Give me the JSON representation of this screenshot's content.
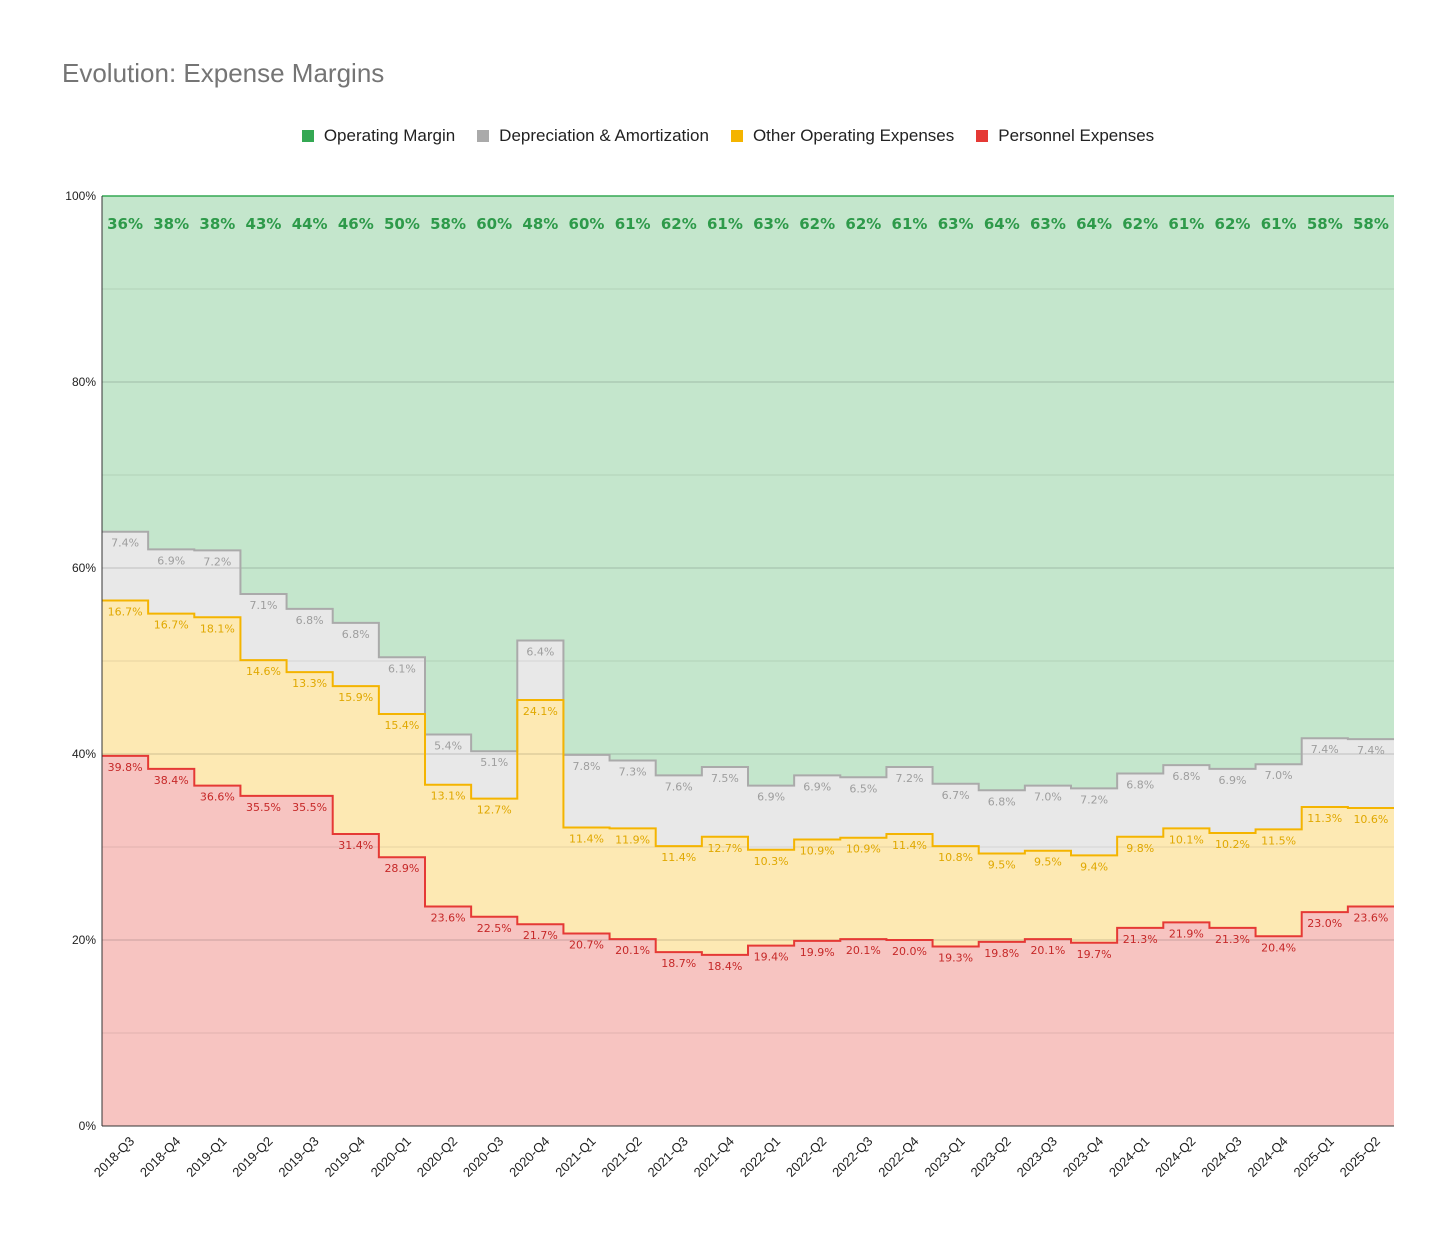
{
  "chart_data": {
    "type": "area",
    "title": "Evolution: Expense Margins",
    "xlabel": "",
    "ylabel": "",
    "ylim": [
      0,
      100
    ],
    "y_ticks": [
      "0%",
      "20%",
      "40%",
      "60%",
      "80%",
      "100%"
    ],
    "grid": true,
    "legend_position": "top-center",
    "categories": [
      "2018-Q3",
      "2018-Q4",
      "2019-Q1",
      "2019-Q2",
      "2019-Q3",
      "2019-Q4",
      "2020-Q1",
      "2020-Q2",
      "2020-Q3",
      "2020-Q4",
      "2021-Q1",
      "2021-Q2",
      "2021-Q3",
      "2021-Q4",
      "2022-Q1",
      "2022-Q2",
      "2022-Q3",
      "2022-Q4",
      "2023-Q1",
      "2023-Q2",
      "2023-Q3",
      "2023-Q4",
      "2024-Q1",
      "2024-Q2",
      "2024-Q3",
      "2024-Q4",
      "2025-Q1",
      "2025-Q2"
    ],
    "series": [
      {
        "name": "Personnel Expenses",
        "color": "#e53935",
        "fill": "#f7c4c1",
        "label_color": "#c62828",
        "values": [
          39.8,
          38.4,
          36.6,
          35.5,
          35.5,
          31.4,
          28.9,
          23.6,
          22.5,
          21.7,
          20.7,
          20.1,
          18.7,
          18.4,
          19.4,
          19.9,
          20.1,
          20.0,
          19.3,
          19.8,
          20.1,
          19.7,
          21.3,
          21.9,
          21.3,
          20.4,
          23.0,
          23.6
        ]
      },
      {
        "name": "Other Operating Expenses",
        "color": "#f4b400",
        "fill": "#fde9b3",
        "label_color": "#e0a800",
        "values": [
          16.7,
          16.7,
          18.1,
          14.6,
          13.3,
          15.9,
          15.4,
          13.1,
          12.7,
          24.1,
          11.4,
          11.9,
          11.4,
          12.7,
          10.3,
          10.9,
          10.9,
          11.4,
          10.8,
          9.5,
          9.5,
          9.4,
          9.8,
          10.1,
          10.2,
          11.5,
          11.3,
          10.6
        ]
      },
      {
        "name": "Depreciation & Amortization",
        "color": "#aaaaaa",
        "fill": "#e8e8e8",
        "label_color": "#9e9e9e",
        "values": [
          7.4,
          6.9,
          7.2,
          7.1,
          6.8,
          6.8,
          6.1,
          5.4,
          5.1,
          6.4,
          7.8,
          7.3,
          7.6,
          7.5,
          6.9,
          6.9,
          6.5,
          7.2,
          6.7,
          6.8,
          7.0,
          7.2,
          6.8,
          6.8,
          6.9,
          7.0,
          7.4,
          7.4
        ]
      },
      {
        "name": "Operating Margin",
        "color": "#34a853",
        "fill": "#c4e6cc",
        "label_color": "#2e9a4a",
        "values": [
          36,
          38,
          38,
          43,
          44,
          46,
          50,
          58,
          60,
          48,
          60,
          61,
          62,
          61,
          63,
          62,
          62,
          61,
          63,
          64,
          63,
          64,
          62,
          61,
          62,
          61,
          58,
          58
        ],
        "labels": [
          "36%",
          "38%",
          "38%",
          "43%",
          "44%",
          "46%",
          "50%",
          "58%",
          "60%",
          "48%",
          "60%",
          "61%",
          "62%",
          "61%",
          "63%",
          "62%",
          "62%",
          "61%",
          "63%",
          "64%",
          "63%",
          "64%",
          "62%",
          "61%",
          "62%",
          "61%",
          "58%",
          "58%"
        ]
      }
    ]
  },
  "legend_order": [
    "Operating Margin",
    "Depreciation & Amortization",
    "Other Operating Expenses",
    "Personnel Expenses"
  ]
}
